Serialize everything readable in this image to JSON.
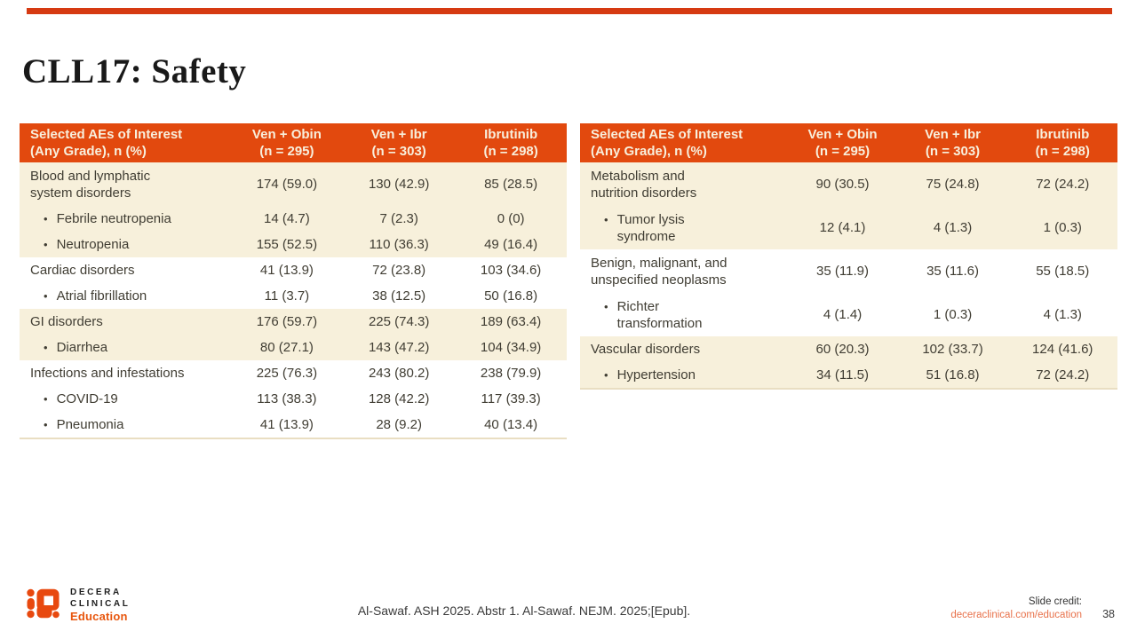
{
  "slide": {
    "title": "CLL17: Safety"
  },
  "colors": {
    "accent_bar": "#D63A12",
    "table_header_bg": "#E2490E",
    "table_header_text": "#F8EFDC",
    "row_cream": "#F7F0DB",
    "body_text": "#403D33",
    "link_orange": "#E8714A",
    "logo_orange": "#E8490F"
  },
  "tables": [
    {
      "header": [
        "Selected AEs of Interest\n(Any Grade), n (%)",
        "Ven + Obin\n(n = 295)",
        "Ven + Ibr\n(n = 303)",
        "Ibrutinib\n(n = 298)"
      ],
      "rows": [
        {
          "label": "Blood and lymphatic\nsystem disorders",
          "bullet": false,
          "shade": "cream",
          "values": [
            "174 (59.0)",
            "130 (42.9)",
            "85 (28.5)"
          ]
        },
        {
          "label": "Febrile neutropenia",
          "bullet": true,
          "shade": "cream",
          "values": [
            "14 (4.7)",
            "7 (2.3)",
            "0 (0)"
          ]
        },
        {
          "label": "Neutropenia",
          "bullet": true,
          "shade": "cream",
          "values": [
            "155 (52.5)",
            "110 (36.3)",
            "49 (16.4)"
          ]
        },
        {
          "label": "Cardiac disorders",
          "bullet": false,
          "shade": "white",
          "values": [
            "41 (13.9)",
            "72 (23.8)",
            "103 (34.6)"
          ]
        },
        {
          "label": "Atrial fibrillation",
          "bullet": true,
          "shade": "white",
          "values": [
            "11 (3.7)",
            "38 (12.5)",
            "50 (16.8)"
          ]
        },
        {
          "label": "GI disorders",
          "bullet": false,
          "shade": "cream",
          "values": [
            "176 (59.7)",
            "225 (74.3)",
            "189 (63.4)"
          ]
        },
        {
          "label": "Diarrhea",
          "bullet": true,
          "shade": "cream",
          "values": [
            "80 (27.1)",
            "143 (47.2)",
            "104 (34.9)"
          ]
        },
        {
          "label": "Infections and infestations",
          "bullet": false,
          "shade": "white",
          "values": [
            "225 (76.3)",
            "243 (80.2)",
            "238 (79.9)"
          ]
        },
        {
          "label": "COVID-19",
          "bullet": true,
          "shade": "white",
          "values": [
            "113 (38.3)",
            "128 (42.2)",
            "117 (39.3)"
          ]
        },
        {
          "label": "Pneumonia",
          "bullet": true,
          "shade": "white",
          "values": [
            "41 (13.9)",
            "28 (9.2)",
            "40 (13.4)"
          ]
        }
      ]
    },
    {
      "header": [
        "Selected AEs of Interest\n(Any Grade), n (%)",
        "Ven + Obin\n(n = 295)",
        "Ven + Ibr\n(n = 303)",
        "Ibrutinib\n(n = 298)"
      ],
      "rows": [
        {
          "label": "Metabolism and\nnutrition disorders",
          "bullet": false,
          "shade": "cream",
          "values": [
            "90 (30.5)",
            "75 (24.8)",
            "72 (24.2)"
          ]
        },
        {
          "label": "Tumor lysis\nsyndrome",
          "bullet": true,
          "shade": "cream",
          "values": [
            "12 (4.1)",
            "4 (1.3)",
            "1 (0.3)"
          ]
        },
        {
          "label": "Benign, malignant, and\nunspecified neoplasms",
          "bullet": false,
          "shade": "white",
          "values": [
            "35 (11.9)",
            "35 (11.6)",
            "55 (18.5)"
          ]
        },
        {
          "label": "Richter\ntransformation",
          "bullet": true,
          "shade": "white",
          "values": [
            "4 (1.4)",
            "1 (0.3)",
            "4 (1.3)"
          ]
        },
        {
          "label": "Vascular disorders",
          "bullet": false,
          "shade": "cream",
          "values": [
            "60 (20.3)",
            "102 (33.7)",
            "124 (41.6)"
          ]
        },
        {
          "label": "Hypertension",
          "bullet": true,
          "shade": "cream",
          "values": [
            "34 (11.5)",
            "51 (16.8)",
            "72 (24.2)"
          ]
        }
      ]
    }
  ],
  "footer": {
    "logo": {
      "line1": "DECERA",
      "line2": "CLINICAL",
      "line3": "Education"
    },
    "citation": "Al-Sawaf. ASH 2025. Abstr 1. Al-Sawaf. NEJM. 2025;[Epub].",
    "slide_credit_label": "Slide credit:",
    "slide_credit_link": "deceraclinical.com/education",
    "page_number": "38"
  }
}
